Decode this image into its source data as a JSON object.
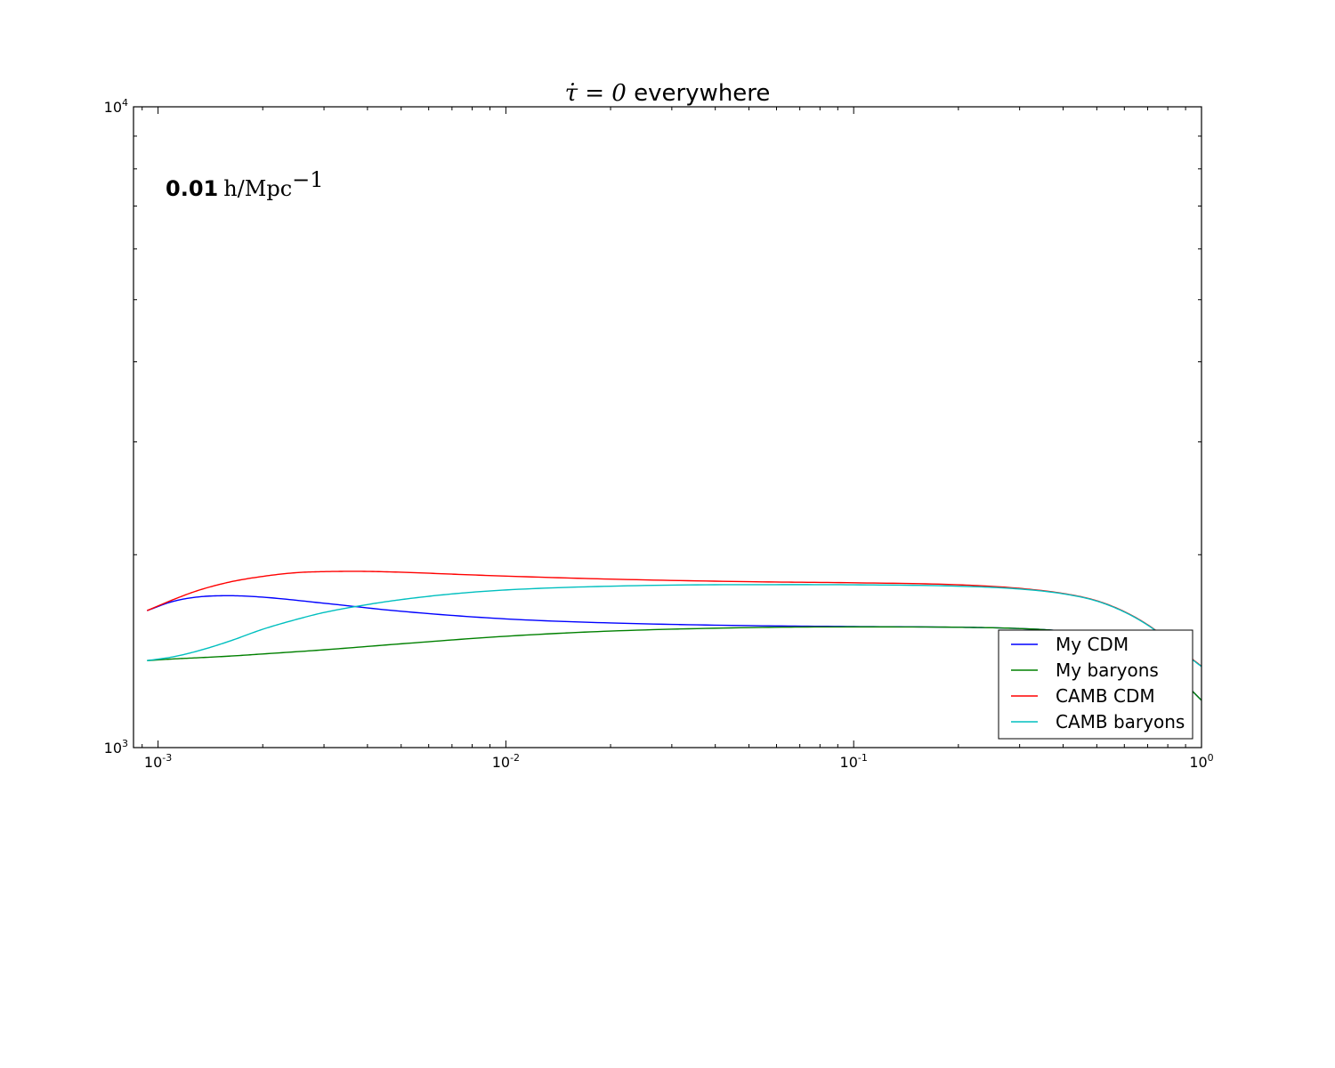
{
  "chart_data": {
    "type": "line",
    "title": {
      "math": "τ̇ = 0",
      "text": " everywhere"
    },
    "annotation": {
      "bold": "0.01",
      "math": "h/Mpc",
      "math_exp": "−1"
    },
    "x_scale": "log",
    "y_scale": "log",
    "xlim": [
      0.00085,
      1.0
    ],
    "ylim": [
      1000,
      10000
    ],
    "x_ticks": [
      {
        "value": 0.001,
        "base": "10",
        "exp": "-3"
      },
      {
        "value": 0.01,
        "base": "10",
        "exp": "-2"
      },
      {
        "value": 0.1,
        "base": "10",
        "exp": "-1"
      },
      {
        "value": 1.0,
        "base": "10",
        "exp": "0"
      }
    ],
    "y_ticks": [
      {
        "value": 1000,
        "base": "10",
        "exp": "3"
      },
      {
        "value": 10000,
        "base": "10",
        "exp": "4"
      }
    ],
    "grid": false,
    "legend_position": "lower right",
    "series": [
      {
        "name": "My CDM",
        "color": "#0000ff",
        "x": [
          0.00093,
          0.0011,
          0.0013,
          0.0016,
          0.002,
          0.003,
          0.005,
          0.01,
          0.02,
          0.05,
          0.1,
          0.2,
          0.3,
          0.4,
          0.5,
          0.6,
          0.7,
          0.8,
          0.9,
          1.0
        ],
        "y": [
          1636,
          1690,
          1718,
          1726,
          1717,
          1680,
          1632,
          1588,
          1565,
          1550,
          1545,
          1541,
          1534,
          1520,
          1495,
          1455,
          1400,
          1330,
          1255,
          1185
        ]
      },
      {
        "name": "My baryons",
        "color": "#008000",
        "x": [
          0.00093,
          0.0011,
          0.0013,
          0.0016,
          0.002,
          0.003,
          0.005,
          0.01,
          0.02,
          0.05,
          0.1,
          0.2,
          0.3,
          0.4,
          0.5,
          0.6,
          0.7,
          0.8,
          0.9,
          1.0
        ],
        "y": [
          1367,
          1375,
          1381,
          1389,
          1400,
          1421,
          1452,
          1492,
          1520,
          1539,
          1543,
          1541,
          1534,
          1520,
          1495,
          1455,
          1400,
          1330,
          1255,
          1185
        ]
      },
      {
        "name": "CAMB CDM",
        "color": "#ff0000",
        "x": [
          0.00093,
          0.0011,
          0.0013,
          0.0016,
          0.002,
          0.0025,
          0.003,
          0.0037,
          0.005,
          0.007,
          0.01,
          0.02,
          0.05,
          0.1,
          0.2,
          0.3,
          0.4,
          0.5,
          0.6,
          0.7,
          0.8,
          0.9,
          1.0
        ],
        "y": [
          1636,
          1700,
          1758,
          1812,
          1850,
          1875,
          1882,
          1884,
          1878,
          1865,
          1852,
          1832,
          1815,
          1808,
          1795,
          1772,
          1740,
          1695,
          1630,
          1555,
          1475,
          1400,
          1340
        ]
      },
      {
        "name": "CAMB baryons",
        "color": "#00bfbf",
        "x": [
          0.00093,
          0.0011,
          0.0013,
          0.0016,
          0.002,
          0.0025,
          0.003,
          0.004,
          0.005,
          0.007,
          0.01,
          0.02,
          0.05,
          0.1,
          0.2,
          0.3,
          0.4,
          0.5,
          0.6,
          0.7,
          0.8,
          0.9,
          1.0
        ],
        "y": [
          1367,
          1385,
          1415,
          1465,
          1530,
          1585,
          1625,
          1672,
          1702,
          1737,
          1762,
          1786,
          1796,
          1795,
          1786,
          1768,
          1738,
          1693,
          1628,
          1553,
          1473,
          1398,
          1338
        ]
      }
    ]
  }
}
